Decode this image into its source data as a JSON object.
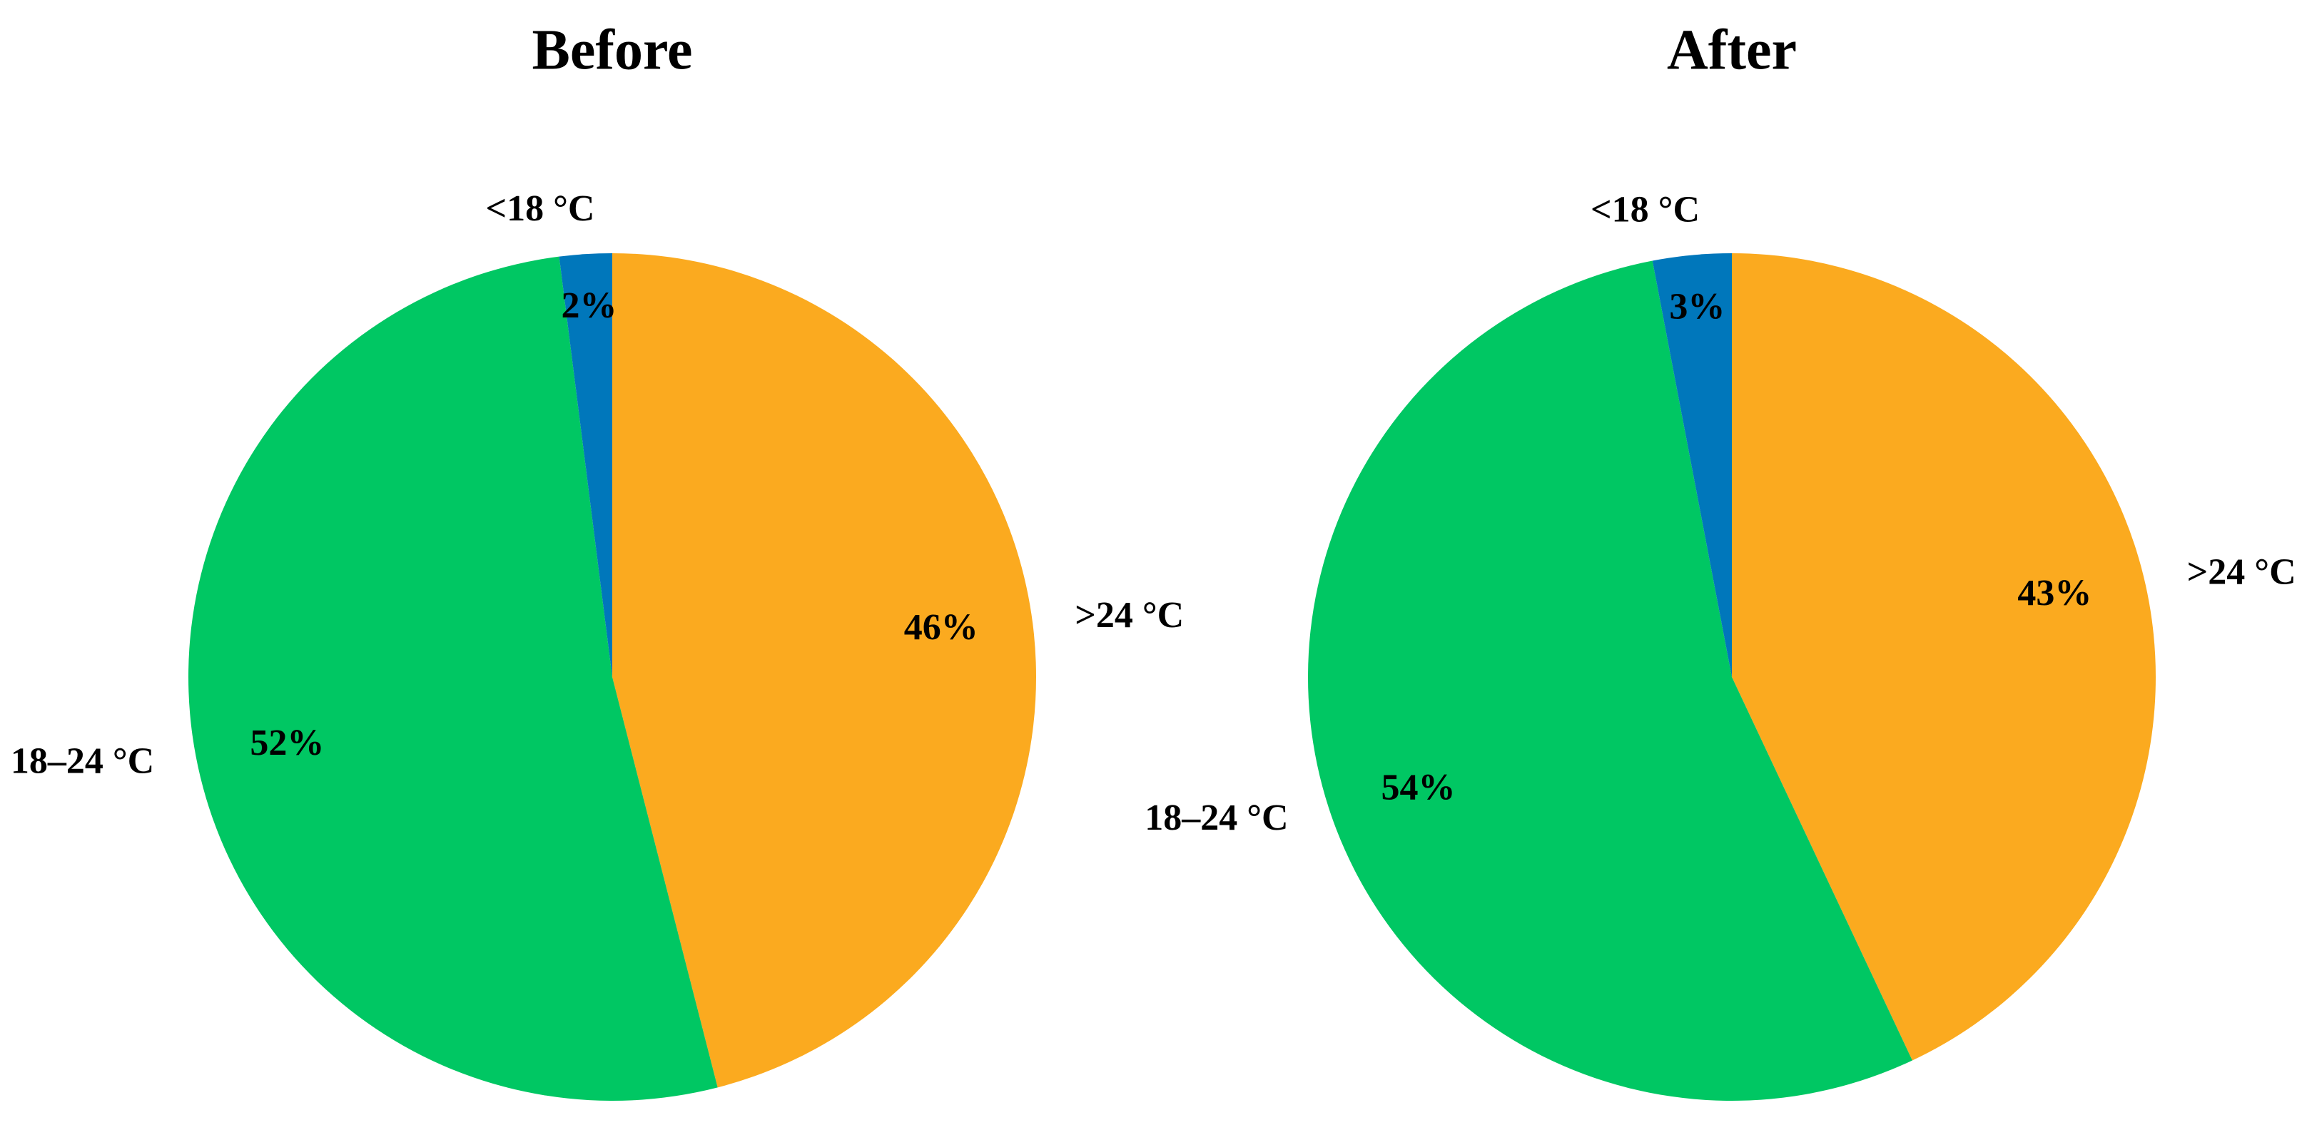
{
  "chart_data": [
    {
      "type": "pie",
      "title": "Before",
      "categories": [
        ">24 °C",
        "18–24 °C",
        "<18 °C"
      ],
      "values": [
        46,
        52,
        2
      ],
      "value_labels": [
        "46%",
        "52%",
        "2%"
      ],
      "colors": [
        "#fbaa1f",
        "#00c763",
        "#0077bb"
      ]
    },
    {
      "type": "pie",
      "title": "After",
      "categories": [
        ">24 °C",
        "18–24 °C",
        "<18 °C"
      ],
      "values": [
        43,
        54,
        3
      ],
      "value_labels": [
        "43%",
        "54%",
        "3%"
      ],
      "colors": [
        "#fbaa1f",
        "#00c763",
        "#0077bb"
      ]
    }
  ]
}
